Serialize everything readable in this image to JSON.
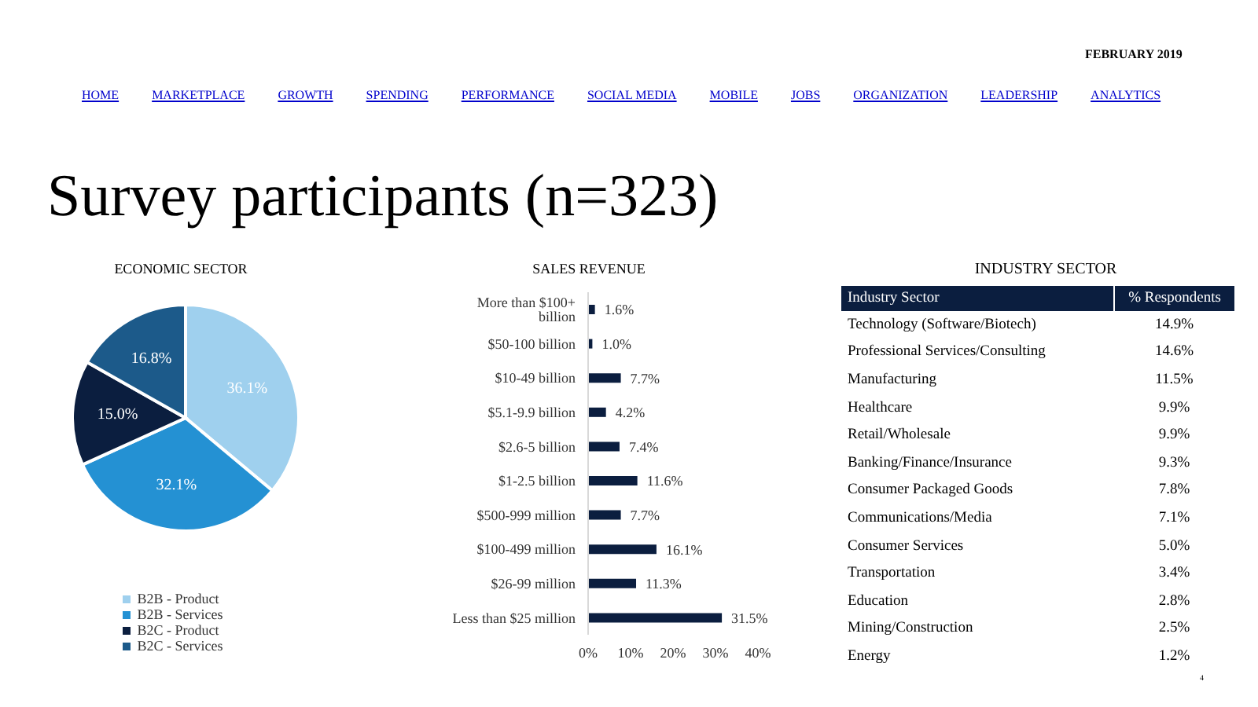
{
  "chart_data": [
    {
      "type": "other",
      "title": "Survey participants (n=323)",
      "subtitle": "FEBRUARY 2019",
      "annotations": [
        "HOME",
        "MARKETPLACE",
        "GROWTH",
        "SPENDING",
        "PERFORMANCE",
        "SOCIAL MEDIA",
        "MOBILE",
        "JOBS",
        "ORGANIZATION",
        "LEADERSHIP",
        "ANALYTICS"
      ]
    },
    {
      "type": "pie",
      "title": "ECONOMIC   SECTOR",
      "categories": [
        "B2B - Product",
        "B2B - Services",
        "B2C - Product",
        "B2C - Services"
      ],
      "values": [
        36.1,
        32.1,
        15.0,
        16.8
      ],
      "value_labels": [
        "36.1%",
        "32.1%",
        "15.0%",
        "16.8%"
      ],
      "colors": [
        "#9fd0ee",
        "#2491d3",
        "#0b1e3f",
        "#1c5a8a"
      ],
      "legend": "bottom"
    },
    {
      "type": "bar",
      "orientation": "horizontal",
      "title": "SALES   REVENUE",
      "categories": [
        "More than $100+ billion",
        "$50-100 billion",
        "$10-49 billion",
        "$5.1-9.9 billion",
        "$2.6-5 billion",
        "$1-2.5 billion",
        "$500-999 million",
        "$100-499 million",
        "$26-99 million",
        "Less than $25 million"
      ],
      "values": [
        1.6,
        1.0,
        7.7,
        4.2,
        7.4,
        11.6,
        7.7,
        16.1,
        11.3,
        31.5
      ],
      "value_labels": [
        "1.6%",
        "1.0%",
        "7.7%",
        "4.2%",
        "7.4%",
        "11.6%",
        "7.7%",
        "16.1%",
        "11.3%",
        "31.5%"
      ],
      "color": "#0b1e3f",
      "xlim": [
        0,
        40
      ],
      "xticks": [
        {
          "value": 0,
          "label": "0%"
        },
        {
          "value": 10,
          "label": "10%"
        },
        {
          "value": 20,
          "label": "20%"
        },
        {
          "value": 30,
          "label": "30%"
        },
        {
          "value": 40,
          "label": "40%"
        }
      ]
    },
    {
      "type": "other",
      "title": "INDUSTRY   SECTOR",
      "xlabel": "Industry Sector",
      "ylabel": "% Respondents",
      "categories": [
        "Technology (Software/Biotech)",
        "Professional Services/Consulting",
        "Manufacturing",
        "Healthcare",
        "Retail/Wholesale",
        "Banking/Finance/Insurance",
        "Consumer Packaged Goods",
        "Communications/Media",
        "Consumer Services",
        "Transportation",
        "Education",
        "Mining/Construction",
        "Energy"
      ],
      "value_labels": [
        "14.9%",
        "14.6%",
        "11.5%",
        "9.9%",
        "9.9%",
        "9.3%",
        "7.8%",
        "7.1%",
        "5.0%",
        "3.4%",
        "2.8%",
        "2.5%",
        "1.2%"
      ],
      "annotations": [
        "4"
      ]
    }
  ]
}
